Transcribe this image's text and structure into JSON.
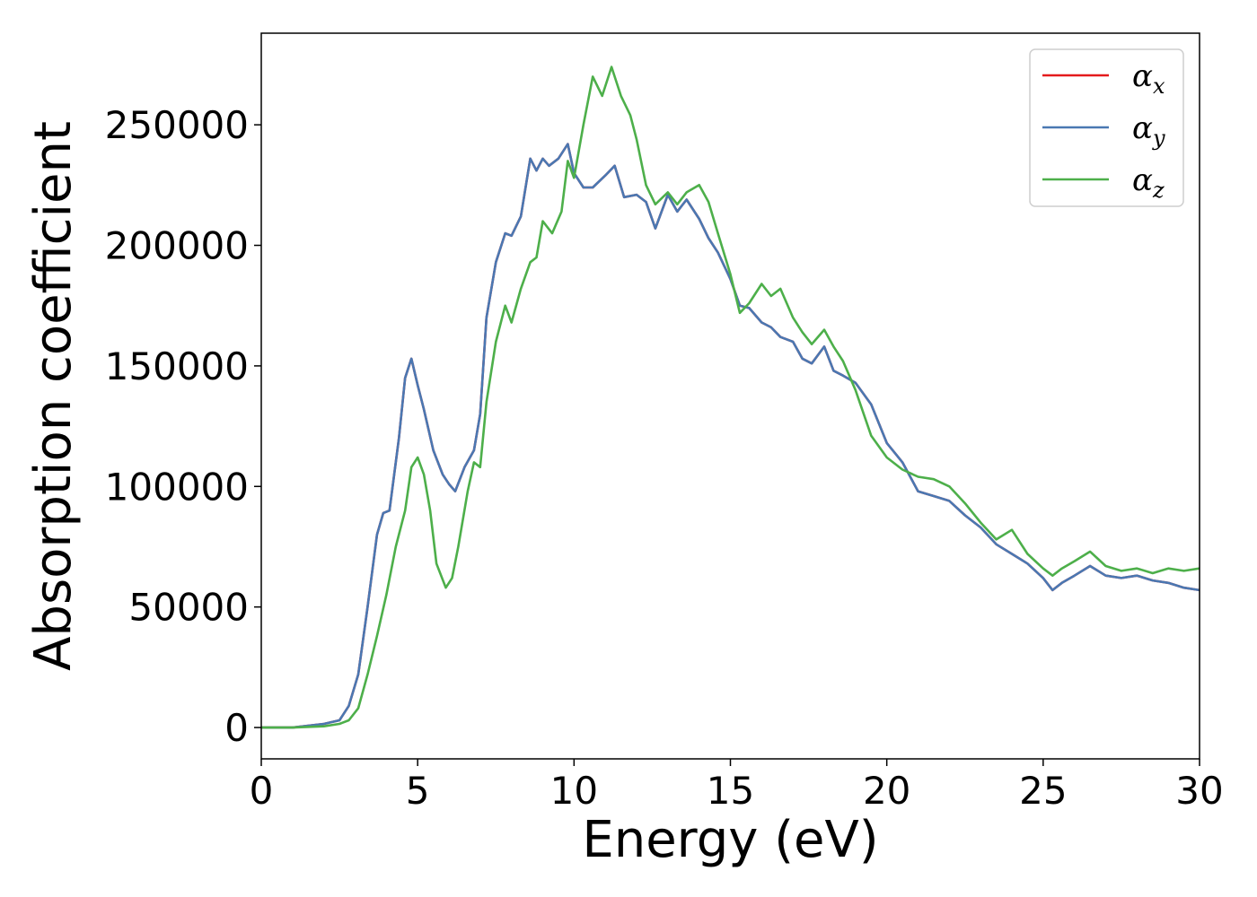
{
  "chart_data": {
    "type": "line",
    "title": "",
    "xlabel": "Energy (eV)",
    "ylabel": "Absorption coefficient",
    "xlim": [
      0,
      30
    ],
    "ylim": [
      -13000,
      288000
    ],
    "xticks": [
      0,
      5,
      10,
      15,
      20,
      25,
      30
    ],
    "yticks": [
      0,
      50000,
      100000,
      150000,
      200000,
      250000
    ],
    "xtick_labels": [
      "0",
      "5",
      "10",
      "15",
      "20",
      "25",
      "30"
    ],
    "ytick_labels": [
      "0",
      "50000",
      "100000",
      "150000",
      "200000",
      "250000"
    ],
    "grid": false,
    "legend_position": "top-right",
    "series": [
      {
        "name_base": "α",
        "name_sub": "x",
        "color": "#e41a1c",
        "x": [
          0,
          1,
          2,
          2.5,
          2.8,
          3.1,
          3.4,
          3.7,
          3.9,
          4.1,
          4.4,
          4.6,
          4.8,
          5.0,
          5.2,
          5.5,
          5.8,
          6.0,
          6.2,
          6.5,
          6.8,
          7.0,
          7.2,
          7.5,
          7.8,
          8.0,
          8.3,
          8.6,
          8.8,
          9.0,
          9.2,
          9.5,
          9.8,
          10.0,
          10.3,
          10.6,
          11.0,
          11.3,
          11.6,
          12.0,
          12.3,
          12.6,
          13.0,
          13.3,
          13.6,
          14.0,
          14.3,
          14.6,
          15.0,
          15.3,
          15.6,
          16.0,
          16.3,
          16.6,
          17.0,
          17.3,
          17.6,
          18.0,
          18.3,
          18.6,
          19.0,
          19.5,
          20.0,
          20.5,
          21.0,
          21.5,
          22.0,
          22.5,
          23.0,
          23.5,
          24.0,
          24.5,
          25.0,
          25.3,
          25.6,
          26.0,
          26.5,
          27.0,
          27.5,
          28.0,
          28.5,
          29.0,
          29.5,
          30.0
        ],
        "values": [
          0,
          0,
          1500,
          3000,
          9000,
          22000,
          50000,
          80000,
          89000,
          90000,
          120000,
          145000,
          153000,
          142000,
          132000,
          115000,
          105000,
          101000,
          98000,
          108000,
          115000,
          130000,
          170000,
          193000,
          205000,
          204000,
          212000,
          236000,
          231000,
          236000,
          233000,
          236000,
          242000,
          230000,
          224000,
          224000,
          229000,
          233000,
          220000,
          221000,
          218000,
          207000,
          221000,
          214000,
          219000,
          211000,
          203000,
          197000,
          186000,
          175000,
          174000,
          168000,
          166000,
          162000,
          160000,
          153000,
          151000,
          158000,
          148000,
          146000,
          143000,
          134000,
          118000,
          110000,
          98000,
          96000,
          94000,
          88000,
          83000,
          76000,
          72000,
          68000,
          62000,
          57000,
          60000,
          63000,
          67000,
          63000,
          62000,
          63000,
          61000,
          60000,
          58000,
          57000
        ],
        "render": "underneath"
      },
      {
        "name_base": "α",
        "name_sub": "y",
        "color": "#4a78b2",
        "x": [
          0,
          1,
          2,
          2.5,
          2.8,
          3.1,
          3.4,
          3.7,
          3.9,
          4.1,
          4.4,
          4.6,
          4.8,
          5.0,
          5.2,
          5.5,
          5.8,
          6.0,
          6.2,
          6.5,
          6.8,
          7.0,
          7.2,
          7.5,
          7.8,
          8.0,
          8.3,
          8.6,
          8.8,
          9.0,
          9.2,
          9.5,
          9.8,
          10.0,
          10.3,
          10.6,
          11.0,
          11.3,
          11.6,
          12.0,
          12.3,
          12.6,
          13.0,
          13.3,
          13.6,
          14.0,
          14.3,
          14.6,
          15.0,
          15.3,
          15.6,
          16.0,
          16.3,
          16.6,
          17.0,
          17.3,
          17.6,
          18.0,
          18.3,
          18.6,
          19.0,
          19.5,
          20.0,
          20.5,
          21.0,
          21.5,
          22.0,
          22.5,
          23.0,
          23.5,
          24.0,
          24.5,
          25.0,
          25.3,
          25.6,
          26.0,
          26.5,
          27.0,
          27.5,
          28.0,
          28.5,
          29.0,
          29.5,
          30.0
        ],
        "values": [
          0,
          0,
          1500,
          3000,
          9000,
          22000,
          50000,
          80000,
          89000,
          90000,
          120000,
          145000,
          153000,
          142000,
          132000,
          115000,
          105000,
          101000,
          98000,
          108000,
          115000,
          130000,
          170000,
          193000,
          205000,
          204000,
          212000,
          236000,
          231000,
          236000,
          233000,
          236000,
          242000,
          230000,
          224000,
          224000,
          229000,
          233000,
          220000,
          221000,
          218000,
          207000,
          221000,
          214000,
          219000,
          211000,
          203000,
          197000,
          186000,
          175000,
          174000,
          168000,
          166000,
          162000,
          160000,
          153000,
          151000,
          158000,
          148000,
          146000,
          143000,
          134000,
          118000,
          110000,
          98000,
          96000,
          94000,
          88000,
          83000,
          76000,
          72000,
          68000,
          62000,
          57000,
          60000,
          63000,
          67000,
          63000,
          62000,
          63000,
          61000,
          60000,
          58000,
          57000
        ]
      },
      {
        "name_base": "α",
        "name_sub": "z",
        "color": "#4daf4a",
        "x": [
          0,
          1,
          2,
          2.5,
          2.8,
          3.1,
          3.4,
          3.7,
          4.0,
          4.3,
          4.6,
          4.8,
          5.0,
          5.2,
          5.4,
          5.6,
          5.9,
          6.1,
          6.3,
          6.6,
          6.8,
          7.0,
          7.2,
          7.5,
          7.8,
          8.0,
          8.3,
          8.6,
          8.8,
          9.0,
          9.3,
          9.6,
          9.8,
          10.0,
          10.3,
          10.6,
          10.9,
          11.2,
          11.5,
          11.8,
          12.0,
          12.3,
          12.6,
          13.0,
          13.3,
          13.6,
          14.0,
          14.3,
          14.6,
          15.0,
          15.3,
          15.6,
          16.0,
          16.3,
          16.6,
          17.0,
          17.3,
          17.6,
          18.0,
          18.3,
          18.6,
          19.0,
          19.5,
          20.0,
          20.5,
          21.0,
          21.5,
          22.0,
          22.5,
          23.0,
          23.5,
          24.0,
          24.5,
          25.0,
          25.3,
          25.6,
          26.0,
          26.5,
          27.0,
          27.5,
          28.0,
          28.5,
          29.0,
          29.5,
          30.0
        ],
        "values": [
          0,
          0,
          500,
          1500,
          3000,
          8000,
          22000,
          38000,
          55000,
          75000,
          90000,
          108000,
          112000,
          105000,
          90000,
          68000,
          58000,
          62000,
          75000,
          98000,
          110000,
          108000,
          135000,
          160000,
          175000,
          168000,
          182000,
          193000,
          195000,
          210000,
          205000,
          214000,
          235000,
          228000,
          250000,
          270000,
          262000,
          274000,
          262000,
          254000,
          244000,
          225000,
          217000,
          222000,
          217000,
          222000,
          225000,
          218000,
          205000,
          188000,
          172000,
          176000,
          184000,
          179000,
          182000,
          170000,
          164000,
          159000,
          165000,
          158000,
          152000,
          140000,
          121000,
          112000,
          107000,
          104000,
          103000,
          100000,
          93000,
          85000,
          78000,
          82000,
          72000,
          66000,
          63000,
          66000,
          69000,
          73000,
          67000,
          65000,
          66000,
          64000,
          66000,
          65000,
          66000
        ]
      }
    ]
  }
}
